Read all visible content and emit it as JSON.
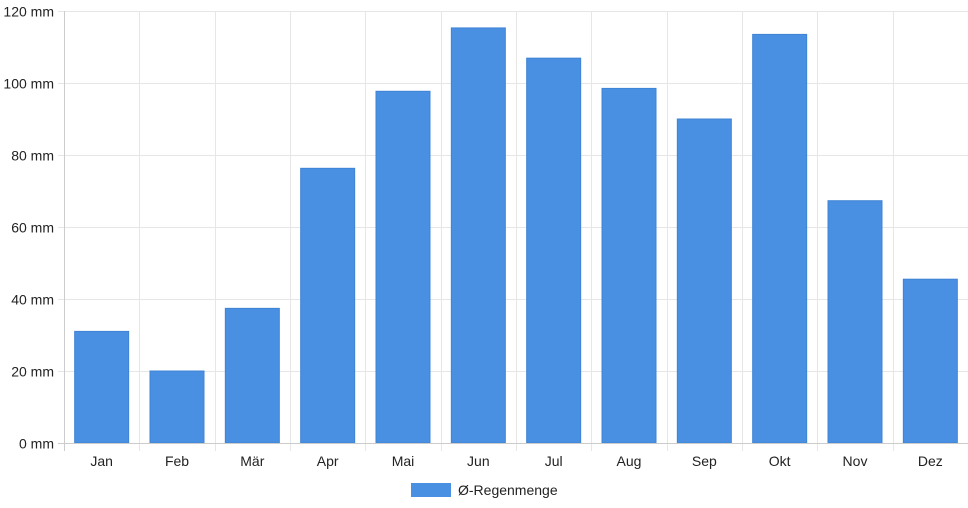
{
  "chart_data": {
    "type": "bar",
    "categories": [
      "Jan",
      "Feb",
      "Mär",
      "Apr",
      "Mai",
      "Jun",
      "Jul",
      "Aug",
      "Sep",
      "Okt",
      "Nov",
      "Dez"
    ],
    "series": [
      {
        "name": "Ø-Regenmenge",
        "color": "#4a90e2",
        "values": [
          31,
          20,
          37.4,
          76.3,
          97.7,
          115.3,
          106.9,
          98.5,
          90,
          113.5,
          67.3,
          45.5
        ]
      }
    ],
    "ylim": [
      0,
      120
    ],
    "yticks": [
      0,
      20,
      40,
      60,
      80,
      100,
      120
    ],
    "y_unit_suffix": " mm",
    "grid": true,
    "legend_position": "bottom-center"
  }
}
